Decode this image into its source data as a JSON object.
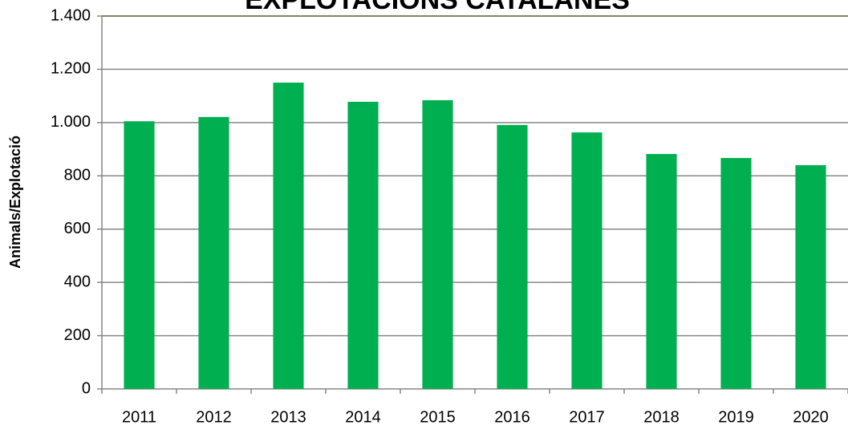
{
  "chart_data": {
    "type": "bar",
    "title": "EXPLOTACIONS CATALANES",
    "y_label": "Animals/Explotació",
    "categories": [
      "2011",
      "2012",
      "2013",
      "2014",
      "2015",
      "2016",
      "2017",
      "2018",
      "2019",
      "2020"
    ],
    "values": [
      1005,
      1021,
      1150,
      1078,
      1084,
      991,
      963,
      882,
      867,
      840
    ],
    "color": "#00b050",
    "ylim": [
      0,
      1400
    ],
    "yticks": [
      0,
      200,
      400,
      600,
      800,
      {
        "value": 1000,
        "label": "1.000"
      },
      {
        "value": 1200,
        "label": "1.200"
      },
      {
        "value": 1400,
        "label": "1.400"
      }
    ],
    "grid": true
  }
}
